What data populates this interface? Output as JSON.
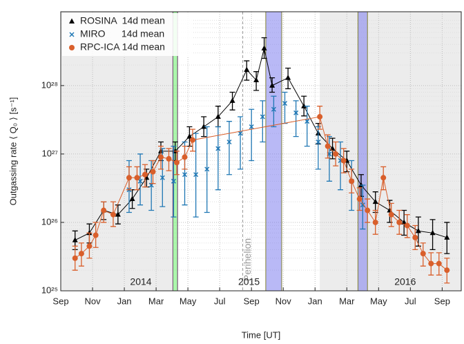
{
  "chart_data": {
    "type": "scatter",
    "xlabel": "Time [UT]",
    "ylabel": "Outgassing rate ⟨ Q₀ ⟩ [s⁻¹]",
    "log_y": true,
    "grid": true,
    "legend": "upper left",
    "xlim": [
      0,
      25.2
    ],
    "xticks": [
      {
        "value": 0,
        "label": "Sep"
      },
      {
        "value": 2,
        "label": "Nov"
      },
      {
        "value": 4,
        "label": "Jan"
      },
      {
        "value": 6,
        "label": "Mar"
      },
      {
        "value": 8,
        "label": "May"
      },
      {
        "value": 10,
        "label": "Jul"
      },
      {
        "value": 12,
        "label": "Sep"
      },
      {
        "value": 14,
        "label": "Nov"
      },
      {
        "value": 16,
        "label": "Jan"
      },
      {
        "value": 18,
        "label": "Mar"
      },
      {
        "value": 20,
        "label": "May"
      },
      {
        "value": 22,
        "label": "Jul"
      },
      {
        "value": 24,
        "label": "Sep"
      }
    ],
    "ylim": [
      1e+25,
      1.2e+29
    ],
    "yticks": [
      {
        "value": 1e+25,
        "label": "10²⁵"
      },
      {
        "value": 1e+26,
        "label": "10²⁶"
      },
      {
        "value": 1e+27,
        "label": "10²⁷"
      },
      {
        "value": 1e+28,
        "label": "10²⁸"
      }
    ],
    "year_labels": [
      "2014",
      "2015",
      "2016"
    ],
    "background_bands": {
      "color": "#ececec",
      "ranges": [
        [
          0,
          7
        ],
        [
          16.3,
          25.2
        ]
      ]
    },
    "highlight_bands": [
      {
        "color": "#66ee66",
        "range": [
          7.05,
          7.35
        ]
      },
      {
        "color": "#8080ee",
        "range": [
          12.9,
          13.9
        ]
      },
      {
        "color": "#8080ee",
        "range": [
          18.7,
          19.3
        ]
      }
    ],
    "perihelion": {
      "label": "Perihelion",
      "x": 11.45
    },
    "series": [
      {
        "name": "ROSINA  14d mean",
        "color": "#000000",
        "marker": "triangle",
        "line": true,
        "x": [
          0.9,
          1.8,
          2.7,
          3.6,
          4.5,
          5.4,
          6.3,
          7.2,
          8.1,
          9.0,
          9.9,
          10.8,
          11.7,
          12.3,
          12.8,
          13.3,
          14.3,
          15.3,
          16.2,
          17.1,
          18.0,
          18.9,
          19.8,
          20.7,
          21.6,
          22.5,
          23.4,
          24.3
        ],
        "values": [
          5.5e+25,
          7e+25,
          1.5e+26,
          1.3e+26,
          2.2e+26,
          4.5e+26,
          1.1e+27,
          1.1e+27,
          1.8e+27,
          2.5e+27,
          3.5e+27,
          6e+27,
          1.7e+28,
          1.2e+28,
          3.5e+28,
          1e+28,
          1.3e+28,
          5e+27,
          2e+27,
          1.2e+27,
          8e+26,
          3.5e+26,
          2e+26,
          1.5e+26,
          1e+26,
          7.5e+25,
          7e+25,
          6e+25
        ],
        "upper": [
          7.5e+25,
          9.5e+25,
          2e+26,
          1.8e+26,
          3e+26,
          6e+26,
          1.5e+27,
          1.5e+27,
          2.5e+27,
          3.5e+27,
          5e+27,
          8e+27,
          2.3e+28,
          1.6e+28,
          5e+28,
          1.3e+28,
          1.8e+28,
          7e+27,
          2.8e+27,
          1.7e+27,
          1.1e+27,
          5e+26,
          2.8e+26,
          2.1e+26,
          1.5e+26,
          1.2e+26,
          1.1e+26,
          1e+26
        ],
        "lower": [
          4e+25,
          5e+25,
          1.1e+26,
          9.5e+25,
          1.6e+26,
          3.3e+26,
          8e+26,
          8e+26,
          1.3e+27,
          1.8e+27,
          2.5e+27,
          4.4e+27,
          1.2e+28,
          8.5e+27,
          2.5e+28,
          8e+27,
          9e+27,
          3.6e+27,
          1.4e+27,
          8.5e+26,
          5.5e+26,
          2.4e+26,
          1.4e+26,
          1e+26,
          6.5e+25,
          4.5e+25,
          4e+25,
          3.5e+25
        ]
      },
      {
        "name": "MIRO      14d mean",
        "color": "#1f77b4",
        "marker": "x",
        "line": false,
        "x": [
          4.3,
          5.0,
          5.7,
          6.4,
          7.1,
          7.8,
          8.5,
          9.2,
          9.9,
          10.6,
          11.3,
          12.0,
          12.7,
          13.4,
          14.1,
          14.8,
          15.5,
          16.2,
          16.9,
          17.6,
          18.3,
          19.0
        ],
        "values": [
          3e+26,
          4e+26,
          3.5e+26,
          4.5e+26,
          4e+26,
          5e+26,
          5e+26,
          6e+26,
          1.2e+27,
          1.5e+27,
          2e+27,
          2.5e+27,
          3.5e+27,
          4.5e+27,
          5.5e+27,
          4e+27,
          3e+27,
          1.5e+27,
          1e+27,
          8e+26,
          4e+26,
          1.8e+26
        ],
        "upper": [
          8e+26,
          1e+27,
          8e+26,
          1.2e+27,
          1.3e+27,
          1.5e+27,
          2e+27,
          2.5e+27,
          2.5e+27,
          3e+27,
          3.5e+27,
          4.5e+27,
          6e+27,
          7e+27,
          8e+27,
          6e+27,
          5e+27,
          2.5e+27,
          1.8e+27,
          1.5e+27,
          8e+26,
          3.5e+26
        ],
        "lower": [
          1.4e+26,
          1.8e+26,
          1.5e+26,
          1.7e+26,
          1.2e+26,
          1.8e+26,
          1.2e+26,
          1.4e+26,
          3e+26,
          5e+26,
          6e+26,
          8e+26,
          1.5e+27,
          2.5e+27,
          2.8e+27,
          1.8e+27,
          1.3e+27,
          6e+26,
          4e+26,
          3e+26,
          1.5e+26,
          8e+25
        ]
      },
      {
        "name": "RPC-ICA 14d mean",
        "color": "#d95f2b",
        "marker": "circle",
        "line": true,
        "x": [
          0.9,
          1.3,
          1.8,
          2.2,
          2.7,
          3.3,
          4.3,
          4.8,
          5.3,
          5.8,
          6.3,
          6.8,
          7.3,
          7.8,
          8.3,
          16.3,
          16.8,
          17.3,
          17.8,
          18.3,
          18.8,
          19.3,
          19.8,
          20.3,
          20.8,
          21.3,
          21.8,
          22.3,
          22.8,
          23.3,
          23.8,
          24.3
        ],
        "values": [
          3e+25,
          3.5e+25,
          4.5e+25,
          6.5e+25,
          1.5e+26,
          1.3e+26,
          4.5e+26,
          4.5e+26,
          5e+26,
          5.5e+26,
          9e+26,
          8.5e+26,
          7.5e+26,
          9e+26,
          1.6e+27,
          3.5e+27,
          1.3e+27,
          1e+27,
          8e+26,
          4e+26,
          2.2e+26,
          1.5e+26,
          1e+26,
          4.5e+26,
          1.3e+26,
          1e+26,
          9e+25,
          6e+25,
          3.5e+25,
          2.5e+25,
          2.5e+25,
          2e+25
        ],
        "upper": [
          4.5e+25,
          5e+25,
          7e+25,
          1e+26,
          2e+26,
          2e+26,
          6.5e+26,
          6.5e+26,
          7e+26,
          8e+26,
          1.3e+27,
          1.2e+27,
          1.1e+27,
          1.3e+27,
          2.3e+27,
          5e+27,
          1.9e+27,
          1.5e+27,
          1.2e+27,
          6e+26,
          3.2e+26,
          2.2e+26,
          1.5e+26,
          6.5e+26,
          1.9e+26,
          1.5e+26,
          1.3e+26,
          9e+25,
          5e+25,
          3.6e+25,
          3.6e+25,
          3e+25
        ],
        "lower": [
          2e+25,
          2.3e+25,
          3e+25,
          4.3e+25,
          1e+26,
          8.7e+25,
          3e+26,
          3e+26,
          3.3e+26,
          3.7e+26,
          6e+26,
          5.7e+26,
          5e+26,
          6e+26,
          1.1e+27,
          2.3e+27,
          8.7e+26,
          6.7e+26,
          5.3e+26,
          2.7e+26,
          1.5e+26,
          1e+26,
          6.7e+25,
          3e+26,
          8.7e+25,
          6.7e+25,
          6e+25,
          4e+25,
          2.3e+25,
          1.7e+25,
          1.7e+25,
          1.3e+25
        ]
      }
    ]
  }
}
